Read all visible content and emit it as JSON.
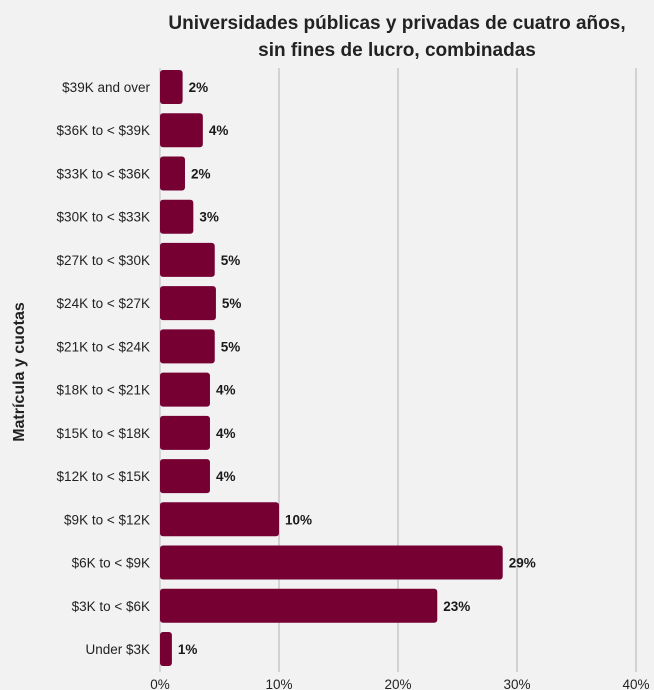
{
  "chart_data": {
    "type": "bar",
    "orientation": "horizontal",
    "title": "Universidades públicas y privadas de cuatro años,\nsin fines de lucro, combinadas",
    "title_lines": [
      "Universidades públicas y privadas de cuatro años,",
      "sin fines de lucro, combinadas"
    ],
    "xlabel": "",
    "ylabel": "Matrícula y cuotas",
    "categories": [
      "$39K and over",
      "$36K to < $39K",
      "$33K to < $36K",
      "$30K to < $33K",
      "$27K to < $30K",
      "$24K to < $27K",
      "$21K to < $24K",
      "$18K to < $21K",
      "$15K to < $18K",
      "$12K to < $15K",
      "$9K to < $12K",
      "$6K to < $9K",
      "$3K to < $6K",
      "Under $3K"
    ],
    "values": [
      1.9,
      3.6,
      2.1,
      2.8,
      4.6,
      4.7,
      4.6,
      4.2,
      4.2,
      4.2,
      10.0,
      28.8,
      23.3,
      1.0
    ],
    "data_labels": [
      "2%",
      "4%",
      "2%",
      "3%",
      "5%",
      "5%",
      "5%",
      "4%",
      "4%",
      "4%",
      "10%",
      "29%",
      "23%",
      "1%"
    ],
    "xlim": [
      0,
      40
    ],
    "xticks": [
      0,
      10,
      20,
      30,
      40
    ],
    "xtick_labels": [
      "0%",
      "10%",
      "20%",
      "30%",
      "40%"
    ],
    "grid": "vertical",
    "colors": {
      "bar": "#770033",
      "grid": "#c8c8c8",
      "background": "#f2f2f2"
    }
  }
}
